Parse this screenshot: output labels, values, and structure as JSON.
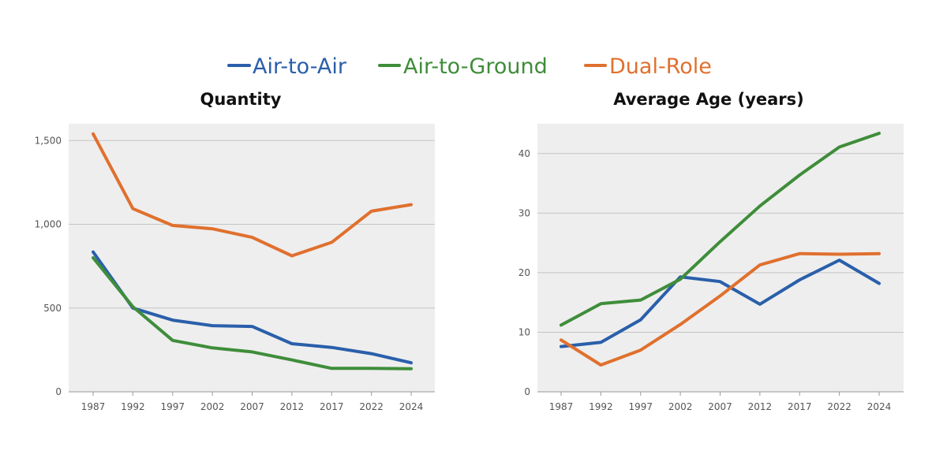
{
  "legend": [
    {
      "name": "Air-to-Air",
      "color": "#2a5faa"
    },
    {
      "name": "Air-to-Ground",
      "color": "#3f8d3a"
    },
    {
      "name": "Dual-Role",
      "color": "#e0702e"
    }
  ],
  "chart_data": [
    {
      "type": "line",
      "title": "Quantity",
      "x": [
        "1987",
        "1992",
        "1997",
        "2002",
        "2007",
        "2012",
        "2017",
        "2022",
        "2024"
      ],
      "ylim": [
        0,
        1600
      ],
      "yticks": [
        0,
        500,
        1000,
        1500
      ],
      "ytick_labels": [
        "0",
        "500",
        "1,000",
        "1,500"
      ],
      "grid": true,
      "series": [
        {
          "name": "Air-to-Air",
          "color": "#2a5faa",
          "values": [
            835,
            500,
            428,
            395,
            390,
            287,
            265,
            228,
            173
          ]
        },
        {
          "name": "Air-to-Ground",
          "color": "#3f8d3a",
          "values": [
            800,
            508,
            307,
            262,
            238,
            190,
            140,
            140,
            138
          ]
        },
        {
          "name": "Dual-Role",
          "color": "#e0702e",
          "values": [
            1540,
            1093,
            993,
            973,
            922,
            812,
            892,
            1078,
            1117
          ]
        }
      ]
    },
    {
      "type": "line",
      "title": "Average Age (years)",
      "x": [
        "1987",
        "1992",
        "1997",
        "2002",
        "2007",
        "2012",
        "2017",
        "2022",
        "2024"
      ],
      "ylim": [
        0,
        45
      ],
      "yticks": [
        0,
        10,
        20,
        30,
        40
      ],
      "ytick_labels": [
        "0",
        "10",
        "20",
        "30",
        "40"
      ],
      "grid": true,
      "series": [
        {
          "name": "Air-to-Air",
          "color": "#2a5faa",
          "values": [
            7.6,
            8.3,
            12.1,
            19.3,
            18.5,
            14.7,
            18.8,
            22.1,
            18.2
          ]
        },
        {
          "name": "Air-to-Ground",
          "color": "#3f8d3a",
          "values": [
            11.2,
            14.8,
            15.4,
            18.9,
            25.2,
            31.2,
            36.4,
            41.1,
            43.4
          ]
        },
        {
          "name": "Dual-Role",
          "color": "#e0702e",
          "values": [
            8.7,
            4.5,
            7.0,
            11.3,
            16.1,
            21.3,
            23.2,
            23.1,
            23.2
          ]
        }
      ]
    }
  ]
}
